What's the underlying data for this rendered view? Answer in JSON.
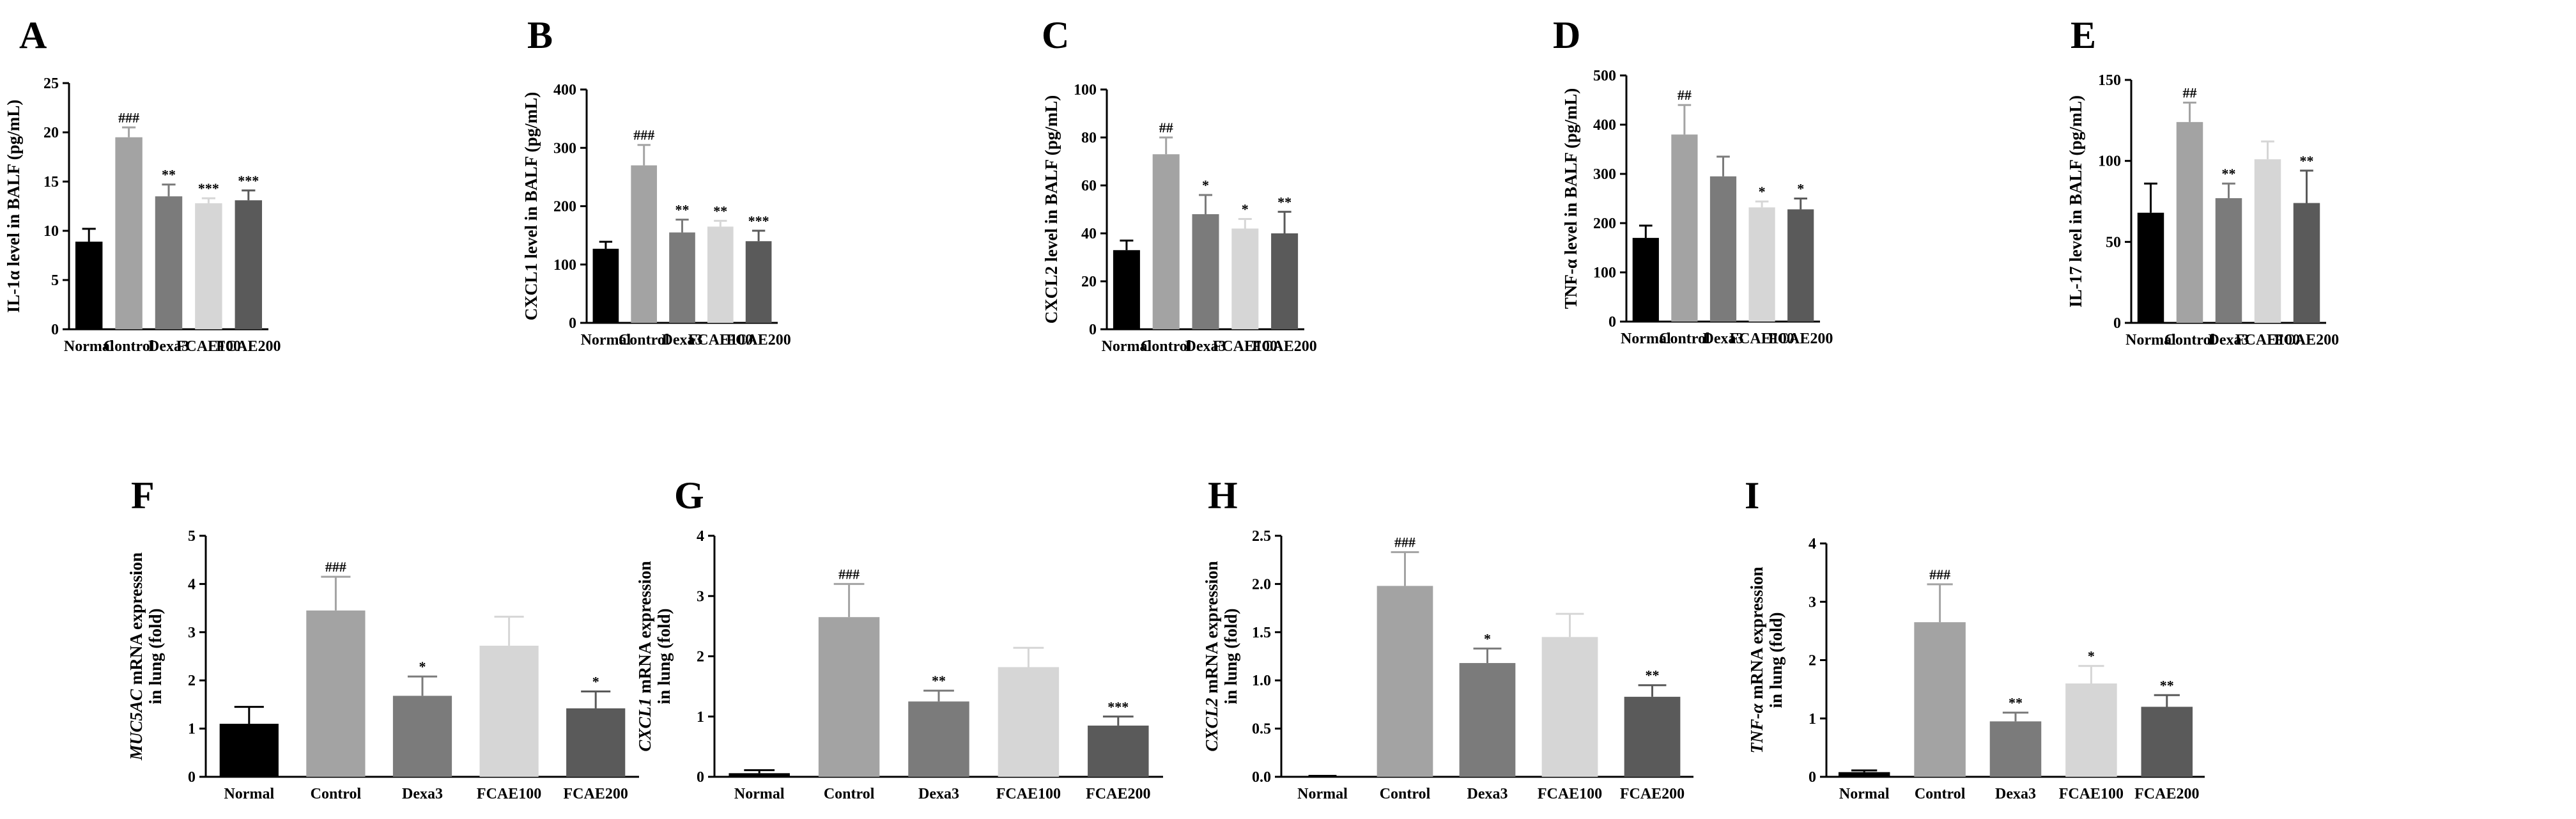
{
  "figure": {
    "colors": {
      "Normal": "#000000",
      "Control": "#a3a3a3",
      "Dexa3": "#7b7b7b",
      "FCAE100": "#d6d6d6",
      "FCAE200": "#5a5a5a"
    }
  },
  "chart_data": [
    {
      "panel": "A",
      "type": "bar",
      "ylabel_parts": [
        "IL-1",
        "α",
        " level in BALF (pg/mL)"
      ],
      "ylabel_italic": [
        false,
        false,
        false
      ],
      "ylim": [
        0,
        25
      ],
      "yticks": [
        "0",
        "5",
        "10",
        "15",
        "20",
        "25"
      ],
      "categories": [
        "Normal",
        "Control",
        "Dexa3",
        "FCAE100",
        "FCAE200"
      ],
      "values": [
        8.9,
        19.5,
        13.5,
        12.8,
        13.1
      ],
      "errors": [
        1.3,
        1.0,
        1.2,
        0.5,
        1.0
      ],
      "sig": [
        "",
        "###",
        "**",
        "***",
        "***"
      ]
    },
    {
      "panel": "B",
      "type": "bar",
      "ylabel_parts": [
        "CXCL1 level in BALF (pg/mL)"
      ],
      "ylabel_italic": [
        false
      ],
      "ylim": [
        0,
        400
      ],
      "yticks": [
        "0",
        "100",
        "200",
        "300",
        "400"
      ],
      "categories": [
        "Normal",
        "Control",
        "Dexa3",
        "FCAE100",
        "FCAE200"
      ],
      "values": [
        127,
        270,
        155,
        165,
        140
      ],
      "errors": [
        12,
        35,
        22,
        10,
        18
      ],
      "sig": [
        "",
        "###",
        "**",
        "**",
        "***"
      ]
    },
    {
      "panel": "C",
      "type": "bar",
      "ylabel_parts": [
        "CXCL2 level in BALF (pg/mL)"
      ],
      "ylabel_italic": [
        false
      ],
      "ylim": [
        0,
        100
      ],
      "yticks": [
        "0",
        "20",
        "40",
        "60",
        "80",
        "100"
      ],
      "categories": [
        "Normal",
        "Control",
        "Dexa3",
        "FCAE100",
        "FCAE200"
      ],
      "values": [
        33,
        73,
        48,
        42,
        40
      ],
      "errors": [
        4,
        7,
        8,
        4,
        9
      ],
      "sig": [
        "",
        "##",
        "*",
        "*",
        "**"
      ]
    },
    {
      "panel": "D",
      "type": "bar",
      "ylabel_parts": [
        "TNF-",
        "α",
        " level in BALF (pg/mL)"
      ],
      "ylabel_italic": [
        false,
        false,
        false
      ],
      "ylim": [
        0,
        500
      ],
      "yticks": [
        "0",
        "100",
        "200",
        "300",
        "400",
        "500"
      ],
      "categories": [
        "Normal",
        "Control",
        "Dexa3",
        "FCAE100",
        "FCAE200"
      ],
      "values": [
        170,
        380,
        295,
        232,
        228
      ],
      "errors": [
        25,
        60,
        40,
        12,
        22
      ],
      "sig": [
        "",
        "##",
        "",
        "*",
        "*"
      ]
    },
    {
      "panel": "E",
      "type": "bar",
      "ylabel_parts": [
        "IL-17 level in BALF (pg/mL)"
      ],
      "ylabel_italic": [
        false
      ],
      "ylim": [
        0,
        150
      ],
      "yticks": [
        "0",
        "50",
        "100",
        "150"
      ],
      "categories": [
        "Normal",
        "Control",
        "Dexa3",
        "FCAE100",
        "FCAE200"
      ],
      "values": [
        68,
        124,
        77,
        101,
        74
      ],
      "errors": [
        18,
        12,
        9,
        11,
        20
      ],
      "sig": [
        "",
        "##",
        "**",
        "",
        "**"
      ]
    },
    {
      "panel": "F",
      "type": "bar",
      "ylabel_parts": [
        "MUC5AC",
        " mRNA expression"
      ],
      "ylabel_italic": [
        true,
        false
      ],
      "ylabel2": "in lung (fold)",
      "ylim": [
        0,
        5
      ],
      "yticks": [
        "0",
        "1",
        "2",
        "3",
        "4",
        "5"
      ],
      "categories": [
        "Normal",
        "Control",
        "Dexa3",
        "FCAE100",
        "FCAE200"
      ],
      "values": [
        1.1,
        3.45,
        1.68,
        2.72,
        1.42
      ],
      "errors": [
        0.35,
        0.7,
        0.4,
        0.6,
        0.35
      ],
      "sig": [
        "",
        "###",
        "*",
        "",
        "*"
      ]
    },
    {
      "panel": "G",
      "type": "bar",
      "ylabel_parts": [
        "CXCL1",
        " mRNA expression"
      ],
      "ylabel_italic": [
        true,
        false
      ],
      "ylabel2": "in lung (fold)",
      "ylim": [
        0,
        4
      ],
      "yticks": [
        "0",
        "1",
        "2",
        "3",
        "4"
      ],
      "categories": [
        "Normal",
        "Control",
        "Dexa3",
        "FCAE100",
        "FCAE200"
      ],
      "values": [
        0.06,
        2.65,
        1.25,
        1.82,
        0.85
      ],
      "errors": [
        0.05,
        0.55,
        0.18,
        0.32,
        0.15
      ],
      "sig": [
        "",
        "###",
        "**",
        "",
        "***"
      ]
    },
    {
      "panel": "H",
      "type": "bar",
      "ylabel_parts": [
        "CXCL2",
        " mRNA expression"
      ],
      "ylabel_italic": [
        true,
        false
      ],
      "ylabel2": "in lung (fold)",
      "ylim": [
        0,
        2.5
      ],
      "yticks": [
        "0.0",
        "0.5",
        "1.0",
        "1.5",
        "2.0",
        "2.5"
      ],
      "categories": [
        "Normal",
        "Control",
        "Dexa3",
        "FCAE100",
        "FCAE200"
      ],
      "values": [
        0.0,
        1.98,
        1.18,
        1.45,
        0.83
      ],
      "errors": [
        0.01,
        0.35,
        0.15,
        0.24,
        0.12
      ],
      "sig": [
        "",
        "###",
        "*",
        "",
        "**"
      ]
    },
    {
      "panel": "I",
      "type": "bar",
      "ylabel_parts": [
        "TNF-α",
        " mRNA expression"
      ],
      "ylabel_italic": [
        true,
        false
      ],
      "ylabel2": "in lung (fold)",
      "ylim": [
        0,
        4
      ],
      "yticks": [
        "0",
        "1",
        "2",
        "3",
        "4"
      ],
      "categories": [
        "Normal",
        "Control",
        "Dexa3",
        "FCAE100",
        "FCAE200"
      ],
      "values": [
        0.08,
        2.65,
        0.95,
        1.6,
        1.2
      ],
      "errors": [
        0.03,
        0.65,
        0.15,
        0.3,
        0.2
      ],
      "sig": [
        "",
        "###",
        "**",
        "*",
        "**"
      ]
    }
  ]
}
